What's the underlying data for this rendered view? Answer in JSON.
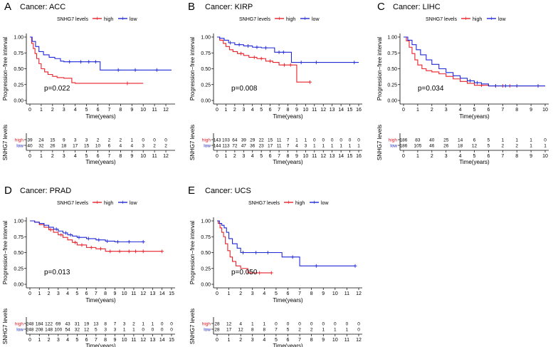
{
  "chart_data": [
    {
      "letter": "A",
      "title": "Cancer: ACC",
      "type": "line",
      "legend": {
        "label": "SNHG7 levels",
        "series": [
          "high",
          "low"
        ]
      },
      "ylabel": "Progression−free interval",
      "xlabel": "Time(years)",
      "xlim": [
        0,
        12.5
      ],
      "ylim": [
        0,
        1
      ],
      "xticks": [
        0,
        1,
        2,
        3,
        4,
        5,
        6,
        7,
        8,
        9,
        10,
        11,
        12
      ],
      "yticks": [
        "0.00",
        "0.25",
        "0.50",
        "0.75",
        "1.00"
      ],
      "pvalue": "p=0.022",
      "series": [
        {
          "name": "high",
          "color": "#e8212a",
          "x": [
            0,
            0.15,
            0.3,
            0.45,
            0.6,
            0.8,
            1.0,
            1.3,
            1.6,
            2.0,
            2.4,
            3.0,
            3.7,
            4.0,
            10
          ],
          "y": [
            1,
            0.9,
            0.82,
            0.74,
            0.66,
            0.58,
            0.5,
            0.45,
            0.41,
            0.38,
            0.36,
            0.35,
            0.28,
            0.27,
            0.27
          ],
          "censor_x": [
            8.6
          ]
        },
        {
          "name": "low",
          "color": "#1f29d6",
          "x": [
            0,
            0.2,
            0.5,
            0.8,
            1.2,
            1.7,
            2.2,
            2.7,
            3.0,
            4.0,
            6.2,
            12.5
          ],
          "y": [
            1,
            0.93,
            0.85,
            0.77,
            0.72,
            0.68,
            0.66,
            0.62,
            0.61,
            0.61,
            0.48,
            0.48
          ],
          "censor_x": [
            3.5,
            4.5,
            5.2,
            5.8,
            7.8,
            9.3,
            11.2
          ]
        }
      ],
      "risk_table": {
        "ylabel": "SNHG7 levels",
        "xlabel": "Time(years)",
        "high": [
          "39",
          "24",
          "15",
          "9",
          "3",
          "3",
          "2",
          "2",
          "2",
          "1",
          "0",
          "0",
          "0"
        ],
        "low": [
          "40",
          "32",
          "26",
          "18",
          "17",
          "15",
          "10",
          "6",
          "4",
          "4",
          "3",
          "2",
          "2"
        ]
      }
    },
    {
      "letter": "B",
      "title": "Cancer: KIRP",
      "type": "line",
      "legend": {
        "label": "SNHG7 levels",
        "series": [
          "high",
          "low"
        ]
      },
      "ylabel": "Progression−free interval",
      "xlabel": "Time(years)",
      "xlim": [
        0,
        16
      ],
      "ylim": [
        0,
        1
      ],
      "xticks": [
        0,
        1,
        2,
        3,
        4,
        5,
        6,
        7,
        8,
        9,
        10,
        11,
        12,
        13,
        14,
        15,
        16
      ],
      "yticks": [
        "0.00",
        "0.25",
        "0.50",
        "0.75",
        "1.00"
      ],
      "pvalue": "p=0.008",
      "series": [
        {
          "name": "high",
          "color": "#e8212a",
          "x": [
            0,
            0.3,
            0.7,
            1.0,
            1.4,
            1.8,
            2.3,
            3.0,
            3.6,
            4.5,
            5.5,
            6.3,
            7.0,
            8.8,
            9.0,
            10.5
          ],
          "y": [
            1,
            0.95,
            0.9,
            0.85,
            0.8,
            0.77,
            0.74,
            0.71,
            0.68,
            0.66,
            0.62,
            0.6,
            0.56,
            0.56,
            0.29,
            0.29
          ],
          "censor_x": [
            2.7,
            4.2,
            5.0,
            6.0,
            7.6,
            8.3,
            10.5
          ]
        },
        {
          "name": "low",
          "color": "#1f29d6",
          "x": [
            0,
            0.3,
            0.8,
            1.3,
            2.0,
            3.0,
            4.0,
            5.0,
            6.0,
            6.5,
            8.0,
            8.4,
            16
          ],
          "y": [
            1,
            0.98,
            0.95,
            0.91,
            0.88,
            0.86,
            0.84,
            0.83,
            0.83,
            0.76,
            0.76,
            0.6,
            0.6
          ],
          "censor_x": [
            1.5,
            2.5,
            3.5,
            4.5,
            5.5,
            7.0,
            7.5,
            9.5,
            11.2,
            15.5
          ]
        }
      ],
      "risk_table": {
        "ylabel": "SNHG7 levels",
        "xlabel": "Time(years)",
        "high": [
          "143",
          "103",
          "64",
          "39",
          "29",
          "22",
          "15",
          "11",
          "7",
          "1",
          "1",
          "0",
          "0",
          "0",
          "0",
          "0",
          "0"
        ],
        "low": [
          "144",
          "113",
          "72",
          "47",
          "36",
          "23",
          "17",
          "11",
          "7",
          "4",
          "3",
          "1",
          "1",
          "1",
          "1",
          "1",
          "1"
        ]
      }
    },
    {
      "letter": "C",
      "title": "Cancer: LIHC",
      "type": "line",
      "legend": {
        "label": "SNHG7 levels",
        "series": [
          "high",
          "low"
        ]
      },
      "ylabel": "Progression−free interval",
      "xlabel": "Time(years)",
      "xlim": [
        0,
        10
      ],
      "ylim": [
        0,
        1
      ],
      "xticks": [
        0,
        1,
        2,
        3,
        4,
        5,
        6,
        7,
        8,
        9,
        10
      ],
      "yticks": [
        "0.00",
        "0.25",
        "0.50",
        "0.75",
        "1.00"
      ],
      "pvalue": "p=0.034",
      "series": [
        {
          "name": "high",
          "color": "#e8212a",
          "x": [
            0,
            0.2,
            0.4,
            0.6,
            0.8,
            1.0,
            1.3,
            1.6,
            2.0,
            2.5,
            3.0,
            3.5,
            4.0,
            4.5,
            5.0,
            6.0,
            10
          ],
          "y": [
            1,
            0.94,
            0.84,
            0.74,
            0.64,
            0.56,
            0.5,
            0.47,
            0.45,
            0.42,
            0.38,
            0.34,
            0.3,
            0.27,
            0.24,
            0.23,
            0.23
          ],
          "censor_x": [
            5.5,
            6.5,
            7.0,
            7.5
          ]
        },
        {
          "name": "low",
          "color": "#1f29d6",
          "x": [
            0,
            0.3,
            0.6,
            0.9,
            1.2,
            1.6,
            2.0,
            2.5,
            3.0,
            3.5,
            4.0,
            4.5,
            5.0,
            5.5,
            6.0,
            10
          ],
          "y": [
            1,
            0.95,
            0.88,
            0.8,
            0.72,
            0.64,
            0.57,
            0.5,
            0.44,
            0.39,
            0.35,
            0.31,
            0.28,
            0.26,
            0.23,
            0.23
          ],
          "censor_x": [
            4.7,
            5.2,
            6.5,
            7.2,
            8.0,
            9.5
          ]
        }
      ],
      "risk_table": {
        "ylabel": "SNHG7 levels",
        "xlabel": "Time(years)",
        "high": [
          "186",
          "83",
          "40",
          "25",
          "14",
          "6",
          "5",
          "1",
          "1",
          "1",
          "0"
        ],
        "low": [
          "186",
          "105",
          "46",
          "26",
          "18",
          "12",
          "5",
          "2",
          "2",
          "1",
          "1"
        ]
      }
    },
    {
      "letter": "D",
      "title": "Cancer: PRAD",
      "type": "line",
      "legend": {
        "label": "SNHG7 levels",
        "series": [
          "high",
          "low"
        ]
      },
      "ylabel": "Progression−free interval",
      "xlabel": "Time(years)",
      "xlim": [
        0,
        15
      ],
      "ylim": [
        0,
        1
      ],
      "xticks": [
        0,
        1,
        2,
        3,
        4,
        5,
        6,
        7,
        8,
        9,
        10,
        11,
        12,
        13,
        14,
        15
      ],
      "yticks": [
        "0.00",
        "0.25",
        "0.50",
        "0.75",
        "1.00"
      ],
      "pvalue": "p=0.013",
      "series": [
        {
          "name": "high",
          "color": "#e8212a",
          "x": [
            0,
            0.5,
            1.0,
            1.5,
            2.0,
            2.5,
            3.0,
            3.5,
            4.0,
            4.5,
            5.0,
            6.0,
            7.0,
            8.0,
            14
          ],
          "y": [
            1,
            0.98,
            0.94,
            0.9,
            0.86,
            0.82,
            0.78,
            0.74,
            0.7,
            0.66,
            0.62,
            0.58,
            0.56,
            0.52,
            0.52
          ],
          "censor_x": [
            2.2,
            3.3,
            4.8,
            5.5,
            6.5,
            7.5,
            8.5,
            9.5,
            10.5,
            11.2,
            12,
            14
          ]
        },
        {
          "name": "low",
          "color": "#1f29d6",
          "x": [
            0,
            0.5,
            1.0,
            1.5,
            2.0,
            2.5,
            3.0,
            3.5,
            4.0,
            4.5,
            5.0,
            6.0,
            7.0,
            8.0,
            9.0,
            12
          ],
          "y": [
            1,
            0.98,
            0.96,
            0.93,
            0.9,
            0.87,
            0.84,
            0.81,
            0.78,
            0.76,
            0.74,
            0.72,
            0.7,
            0.68,
            0.67,
            0.67
          ],
          "censor_x": [
            2.8,
            3.8,
            4.3,
            5.2,
            6.2,
            7.3,
            8.2,
            9.3,
            10.5,
            12
          ]
        }
      ],
      "risk_table": {
        "ylabel": "SNHG7 levels",
        "xlabel": "Time(years)",
        "high": [
          "248",
          "184",
          "122",
          "69",
          "43",
          "31",
          "19",
          "13",
          "8",
          "7",
          "3",
          "2",
          "1",
          "1",
          "0",
          "0"
        ],
        "low": [
          "248",
          "208",
          "148",
          "100",
          "54",
          "32",
          "12",
          "5",
          "3",
          "3",
          "1",
          "1",
          "0",
          "0",
          "0",
          "0"
        ]
      }
    },
    {
      "letter": "E",
      "title": "Cancer: UCS",
      "type": "line",
      "legend": {
        "label": "SNHG7 levels",
        "series": [
          "high",
          "low"
        ]
      },
      "ylabel": "Progression−free interval",
      "xlabel": "Time(years)",
      "xlim": [
        0,
        12
      ],
      "ylim": [
        0,
        1
      ],
      "xticks": [
        0,
        1,
        2,
        3,
        4,
        5,
        6,
        7,
        8,
        9,
        10,
        11,
        12
      ],
      "yticks": [
        "0.00",
        "0.25",
        "0.50",
        "0.75",
        "1.00"
      ],
      "pvalue": "p=0.050",
      "series": [
        {
          "name": "high",
          "color": "#e8212a",
          "x": [
            0,
            0.1,
            0.25,
            0.4,
            0.55,
            0.7,
            0.9,
            1.1,
            1.3,
            1.6,
            2.0,
            2.6,
            4.6
          ],
          "y": [
            1,
            0.96,
            0.89,
            0.82,
            0.75,
            0.64,
            0.53,
            0.43,
            0.36,
            0.29,
            0.25,
            0.18,
            0.18
          ],
          "censor_x": [
            3.6,
            4.6
          ]
        },
        {
          "name": "low",
          "color": "#1f29d6",
          "x": [
            0,
            0.2,
            0.4,
            0.6,
            0.8,
            1.0,
            1.3,
            1.7,
            2.0,
            2.5,
            3.5,
            5.5,
            7.0,
            11.7
          ],
          "y": [
            1,
            0.96,
            0.93,
            0.89,
            0.82,
            0.72,
            0.64,
            0.57,
            0.5,
            0.5,
            0.5,
            0.43,
            0.29,
            0.29
          ],
          "censor_x": [
            2.2,
            3.3,
            4.3,
            6.4,
            8.4,
            11.7
          ]
        }
      ],
      "risk_table": {
        "ylabel": "SNHG7 levels",
        "xlabel": "Time(years)",
        "high": [
          "28",
          "12",
          "4",
          "1",
          "1",
          "0",
          "0",
          "0",
          "0",
          "0",
          "0",
          "0",
          "0"
        ],
        "low": [
          "28",
          "17",
          "12",
          "8",
          "8",
          "7",
          "5",
          "2",
          "2",
          "1",
          "1",
          "1",
          "0"
        ]
      }
    }
  ]
}
